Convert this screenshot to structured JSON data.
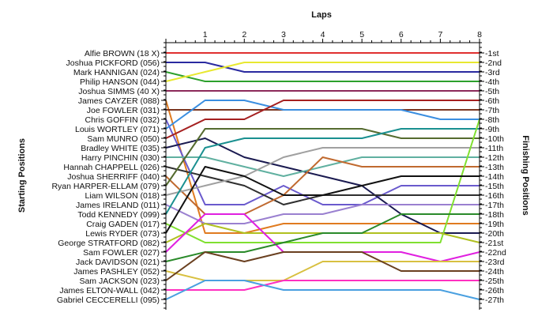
{
  "chart_data": {
    "type": "line",
    "title": "Laps",
    "ylabel_left": "Starting Positions",
    "ylabel_right": "Finishing Positions",
    "x": [
      0,
      1,
      2,
      3,
      4,
      5,
      6,
      7,
      8
    ],
    "x_tick_labels": [
      "1",
      "2",
      "3",
      "4",
      "5",
      "6",
      "7",
      "8"
    ],
    "start_labels": [
      "Alfie BROWN (18 X)",
      "Joshua PICKFORD (056)",
      "Mark HANNIGAN (024)",
      "Philip HANSON (044)",
      "Joshua SIMMS (40 X)",
      "James CAYZER (088)",
      "Joe FOWLER (031)",
      "Chris GOFFIN (032)",
      "Louis WORTLEY (071)",
      "Sam MUNRO (050)",
      "Bradley WHITE (035)",
      "Harry PINCHIN (030)",
      "Hannah CHAPPELL (026)",
      "Joshua SHERRIFF (040)",
      "Ryan HARPER-ELLAM (079)",
      "Liam WILSON (018)",
      "James IRELAND (011)",
      "Todd KENNEDY (099)",
      "Craig GADEN (017)",
      "Lewis RYDER (073)",
      "George STRATFORD (082)",
      "Sam FOWLER (027)",
      "Jack DAVIDSON (021)",
      "James PASHLEY (052)",
      "Sam JACKSON (023)",
      "James ELTON-WALL (042)",
      "Gabriel CECCERELLI (095)"
    ],
    "finish_labels": [
      "1st",
      "2nd",
      "3rd",
      "4th",
      "5th",
      "6th",
      "7th",
      "8th",
      "9th",
      "10th",
      "11th",
      "12th",
      "13th",
      "14th",
      "15th",
      "16th",
      "17th",
      "18th",
      "19th",
      "20th",
      "21st",
      "22nd",
      "23rd",
      "24th",
      "25th",
      "26th",
      "27th"
    ],
    "y_range": [
      1,
      27
    ],
    "grid": false,
    "series": [
      {
        "color": "#e03030",
        "values": [
          1,
          1,
          1,
          1,
          1,
          1,
          1,
          1,
          1
        ]
      },
      {
        "color": "#2a2aa0",
        "values": [
          2,
          2,
          3,
          3,
          3,
          3,
          3,
          3,
          3
        ]
      },
      {
        "color": "#2ca02c",
        "values": [
          3,
          4,
          4,
          4,
          4,
          4,
          4,
          4,
          4
        ]
      },
      {
        "color": "#e8e830",
        "values": [
          4,
          3,
          2,
          2,
          2,
          2,
          2,
          2,
          2
        ]
      },
      {
        "color": "#8c2a5a",
        "values": [
          5,
          5,
          5,
          5,
          5,
          5,
          5,
          5,
          5
        ]
      },
      {
        "color": "#e07b20",
        "values": [
          6,
          20,
          20,
          19,
          19,
          19,
          19,
          19,
          19
        ]
      },
      {
        "color": "#7a3520",
        "values": [
          7,
          7,
          7,
          7,
          7,
          7,
          7,
          7,
          7
        ]
      },
      {
        "color": "#6a5acd",
        "values": [
          8,
          17,
          17,
          15,
          17,
          17,
          15,
          15,
          15
        ]
      },
      {
        "color": "#3a8ee0",
        "values": [
          9,
          6,
          6,
          7,
          7,
          7,
          7,
          8,
          8
        ]
      },
      {
        "color": "#a52020",
        "values": [
          10,
          8,
          8,
          6,
          6,
          6,
          6,
          6,
          6
        ]
      },
      {
        "color": "#1a1a50",
        "values": [
          11,
          10,
          12,
          13,
          14,
          15,
          18,
          20,
          20
        ]
      },
      {
        "color": "#60b0a0",
        "values": [
          12,
          12,
          13,
          14,
          13,
          12,
          12,
          12,
          12
        ]
      },
      {
        "color": "#2f2f2f",
        "values": [
          13,
          14,
          15,
          17,
          16,
          16,
          16,
          16,
          16
        ]
      },
      {
        "color": "#c06a30",
        "values": [
          14,
          18,
          18,
          16,
          12,
          13,
          13,
          13,
          13
        ]
      },
      {
        "color": "#556b2f",
        "values": [
          15,
          9,
          9,
          9,
          9,
          9,
          10,
          10,
          10
        ]
      },
      {
        "color": "#a0a0a0",
        "values": [
          16,
          15,
          14,
          12,
          11,
          11,
          11,
          11,
          11
        ]
      },
      {
        "color": "#9a80d0",
        "values": [
          17,
          19,
          19,
          18,
          18,
          17,
          17,
          17,
          17
        ]
      },
      {
        "color": "#1a9090",
        "values": [
          18,
          11,
          10,
          10,
          10,
          10,
          9,
          9,
          9
        ]
      },
      {
        "color": "#80e030",
        "values": [
          19,
          21,
          21,
          21,
          21,
          21,
          21,
          21,
          8
        ]
      },
      {
        "color": "#111111",
        "values": [
          20,
          13,
          14,
          16,
          16,
          15,
          14,
          14,
          14
        ]
      },
      {
        "color": "#b0c020",
        "values": [
          21,
          19,
          20,
          20,
          20,
          20,
          20,
          20,
          21
        ]
      },
      {
        "color": "#e020e0",
        "values": [
          22,
          18,
          18,
          22,
          22,
          22,
          22,
          23,
          22
        ]
      },
      {
        "color": "#2a8a2a",
        "values": [
          23,
          22,
          22,
          21,
          20,
          20,
          18,
          18,
          18
        ]
      },
      {
        "color": "#d8c040",
        "values": [
          24,
          25,
          25,
          25,
          23,
          23,
          23,
          23,
          23
        ]
      },
      {
        "color": "#6a4020",
        "values": [
          25,
          22,
          23,
          22,
          22,
          22,
          24,
          24,
          24
        ]
      },
      {
        "color": "#ff30c0",
        "values": [
          26,
          26,
          26,
          25,
          25,
          25,
          25,
          25,
          25
        ]
      },
      {
        "color": "#4aa0e0",
        "values": [
          27,
          25,
          25,
          26,
          26,
          26,
          26,
          26,
          27
        ]
      }
    ]
  }
}
